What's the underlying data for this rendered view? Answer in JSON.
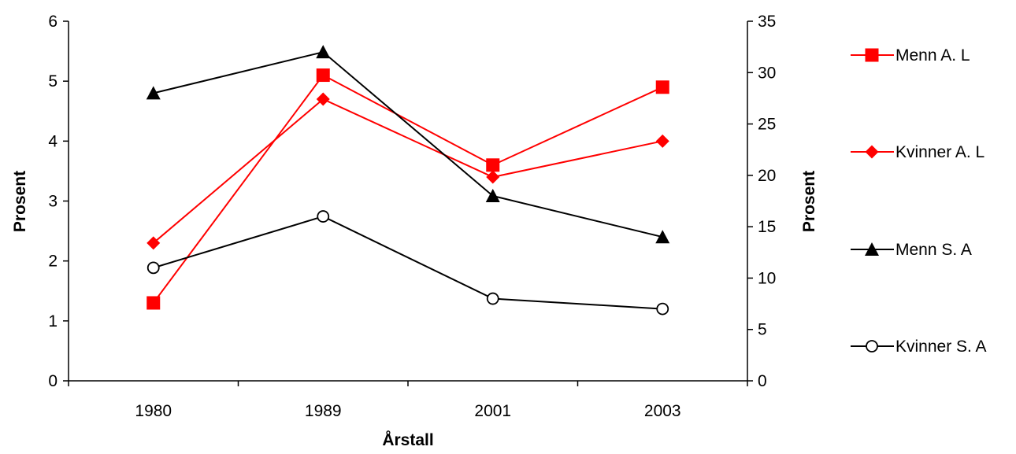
{
  "chart_data": {
    "type": "line",
    "categories": [
      "1980",
      "1989",
      "2001",
      "2003"
    ],
    "xlabel": "Årstall",
    "ylabel": "Prosent",
    "ylabel_right": "Prosent",
    "ylim": [
      0,
      6
    ],
    "ylim_right": [
      0,
      35
    ],
    "yticks": [
      "0",
      "1",
      "2",
      "3",
      "4",
      "5",
      "6"
    ],
    "yticks_right": [
      "0",
      "5",
      "10",
      "15",
      "20",
      "25",
      "30",
      "35"
    ],
    "legend_position": "right",
    "grid": false,
    "series": [
      {
        "name": "Menn A. L",
        "axis": "left",
        "marker": "square",
        "color": "#ff0000",
        "values": [
          1.3,
          5.1,
          3.6,
          4.9
        ]
      },
      {
        "name": "Kvinner A. L",
        "axis": "left",
        "marker": "diamond",
        "color": "#ff0000",
        "values": [
          2.3,
          4.7,
          3.4,
          4.0
        ]
      },
      {
        "name": "Menn S. A",
        "axis": "right",
        "marker": "triangle",
        "color": "#000000",
        "values": [
          28,
          32,
          18,
          14
        ]
      },
      {
        "name": "Kvinner S. A",
        "axis": "right",
        "marker": "circle-open",
        "color": "#000000",
        "values": [
          11,
          16,
          8,
          7
        ]
      }
    ]
  }
}
